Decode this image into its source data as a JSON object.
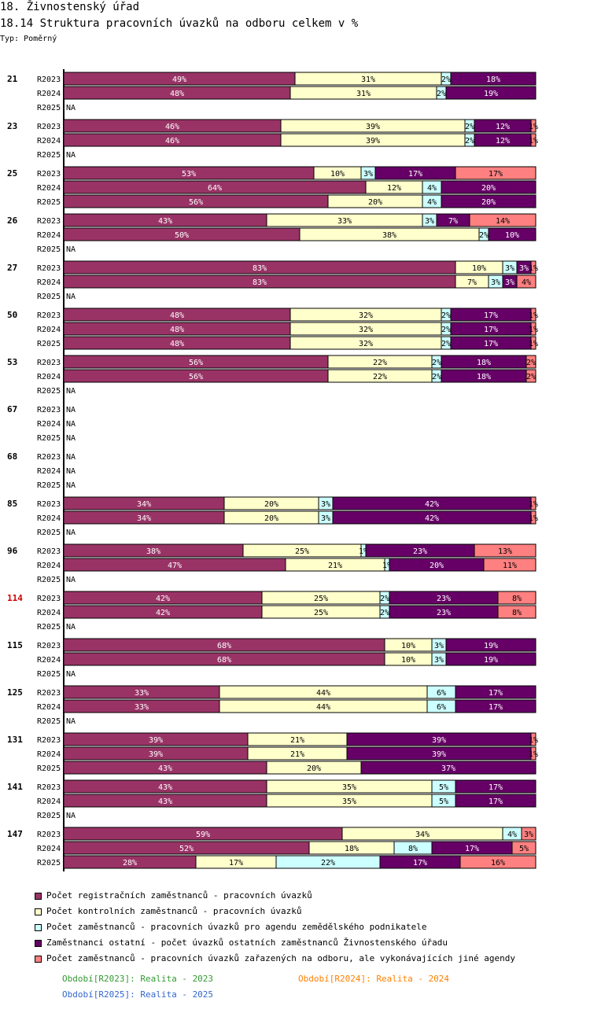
{
  "header": {
    "title": "18. Živnostenský úřad",
    "subtitle": "18.14 Struktura pracovních úvazků na odboru celkem v %",
    "type_label": "Typ: Poměrný"
  },
  "colors": {
    "reg": "#993366",
    "kon": "#ffffcc",
    "zem": "#ccffff",
    "ost": "#660066",
    "jin": "#ff8080",
    "group_highlight": "#cc0000",
    "period_2023": "#339933",
    "period_2024": "#ff8000",
    "period_2025": "#3366cc"
  },
  "legend": [
    {
      "key": "reg",
      "label": "Počet registračních zaměstnanců - pracovních úvazků"
    },
    {
      "key": "kon",
      "label": "Počet kontrolních zaměstnanců - pracovních úvazků"
    },
    {
      "key": "zem",
      "label": "Počet zaměstnanců - pracovních úvazků pro agendu zemědělského podnikatele"
    },
    {
      "key": "ost",
      "label": "Zaměstnanci ostatní - počet úvazků ostatních zaměstnanců Živnostenského úřadu"
    },
    {
      "key": "jin",
      "label": "Počet zaměstnanců - pracovních úvazků zařazených na odboru, ale vykonávajících jiné agendy"
    }
  ],
  "periods": [
    {
      "label": "Období[R2023]: Realita - 2023",
      "color_key": "period_2023"
    },
    {
      "label": "Období[R2024]: Realita - 2024",
      "color_key": "period_2024"
    },
    {
      "label": "Období[R2025]: Realita - 2025",
      "color_key": "period_2025"
    }
  ],
  "chart_data": {
    "type": "bar",
    "orientation": "horizontal",
    "stacked": true,
    "normalized_percent": true,
    "title": "18.14 Struktura pracovních úvazků na odboru celkem v %",
    "series_keys": [
      "reg",
      "kon",
      "zem",
      "ost",
      "jin"
    ],
    "na_label": "NA",
    "groups": [
      {
        "id": "21",
        "highlight": false,
        "rows": [
          {
            "label": "R2023",
            "values": [
              49,
              31,
              2,
              18,
              0
            ]
          },
          {
            "label": "R2024",
            "values": [
              48,
              31,
              2,
              19,
              0
            ]
          },
          {
            "label": "R2025",
            "values": null
          }
        ]
      },
      {
        "id": "23",
        "highlight": false,
        "rows": [
          {
            "label": "R2023",
            "values": [
              46,
              39,
              2,
              12,
              1
            ]
          },
          {
            "label": "R2024",
            "values": [
              46,
              39,
              2,
              12,
              1
            ]
          },
          {
            "label": "R2025",
            "values": null
          }
        ]
      },
      {
        "id": "25",
        "highlight": false,
        "rows": [
          {
            "label": "R2023",
            "values": [
              53,
              10,
              3,
              17,
              17
            ]
          },
          {
            "label": "R2024",
            "values": [
              64,
              12,
              4,
              20,
              0
            ]
          },
          {
            "label": "R2025",
            "values": [
              56,
              20,
              4,
              20,
              0
            ]
          }
        ]
      },
      {
        "id": "26",
        "highlight": false,
        "rows": [
          {
            "label": "R2023",
            "values": [
              43,
              33,
              3,
              7,
              14
            ]
          },
          {
            "label": "R2024",
            "values": [
              50,
              38,
              2,
              10,
              0
            ]
          },
          {
            "label": "R2025",
            "values": null
          }
        ]
      },
      {
        "id": "27",
        "highlight": false,
        "rows": [
          {
            "label": "R2023",
            "values": [
              83,
              10,
              3,
              3,
              1
            ]
          },
          {
            "label": "R2024",
            "values": [
              83,
              7,
              3,
              3,
              4
            ]
          },
          {
            "label": "R2025",
            "values": null
          }
        ]
      },
      {
        "id": "50",
        "highlight": false,
        "rows": [
          {
            "label": "R2023",
            "values": [
              48,
              32,
              2,
              17,
              1
            ]
          },
          {
            "label": "R2024",
            "values": [
              48,
              32,
              2,
              17,
              1
            ]
          },
          {
            "label": "R2025",
            "values": [
              48,
              32,
              2,
              17,
              1
            ]
          }
        ]
      },
      {
        "id": "53",
        "highlight": false,
        "rows": [
          {
            "label": "R2023",
            "values": [
              56,
              22,
              2,
              18,
              2
            ]
          },
          {
            "label": "R2024",
            "values": [
              56,
              22,
              2,
              18,
              2
            ]
          },
          {
            "label": "R2025",
            "values": null
          }
        ]
      },
      {
        "id": "67",
        "highlight": false,
        "rows": [
          {
            "label": "R2023",
            "values": null
          },
          {
            "label": "R2024",
            "values": null
          },
          {
            "label": "R2025",
            "values": null
          }
        ]
      },
      {
        "id": "68",
        "highlight": false,
        "rows": [
          {
            "label": "R2023",
            "values": null
          },
          {
            "label": "R2024",
            "values": null
          },
          {
            "label": "R2025",
            "values": null
          }
        ]
      },
      {
        "id": "85",
        "highlight": false,
        "rows": [
          {
            "label": "R2023",
            "values": [
              34,
              20,
              3,
              42,
              1
            ]
          },
          {
            "label": "R2024",
            "values": [
              34,
              20,
              3,
              42,
              1
            ]
          },
          {
            "label": "R2025",
            "values": null
          }
        ]
      },
      {
        "id": "96",
        "highlight": false,
        "rows": [
          {
            "label": "R2023",
            "values": [
              38,
              25,
              1,
              23,
              13
            ]
          },
          {
            "label": "R2024",
            "values": [
              47,
              21,
              1,
              20,
              11
            ]
          },
          {
            "label": "R2025",
            "values": null
          }
        ]
      },
      {
        "id": "114",
        "highlight": true,
        "rows": [
          {
            "label": "R2023",
            "values": [
              42,
              25,
              2,
              23,
              8
            ]
          },
          {
            "label": "R2024",
            "values": [
              42,
              25,
              2,
              23,
              8
            ]
          },
          {
            "label": "R2025",
            "values": null
          }
        ]
      },
      {
        "id": "115",
        "highlight": false,
        "rows": [
          {
            "label": "R2023",
            "values": [
              68,
              10,
              3,
              19,
              0
            ]
          },
          {
            "label": "R2024",
            "values": [
              68,
              10,
              3,
              19,
              0
            ]
          },
          {
            "label": "R2025",
            "values": null
          }
        ]
      },
      {
        "id": "125",
        "highlight": false,
        "rows": [
          {
            "label": "R2023",
            "values": [
              33,
              44,
              6,
              17,
              0
            ]
          },
          {
            "label": "R2024",
            "values": [
              33,
              44,
              6,
              17,
              0
            ]
          },
          {
            "label": "R2025",
            "values": null
          }
        ]
      },
      {
        "id": "131",
        "highlight": false,
        "rows": [
          {
            "label": "R2023",
            "values": [
              39,
              21,
              0,
              39,
              1
            ]
          },
          {
            "label": "R2024",
            "values": [
              39,
              21,
              0,
              39,
              1
            ]
          },
          {
            "label": "R2025",
            "values": [
              43,
              20,
              0,
              37,
              0
            ]
          }
        ]
      },
      {
        "id": "141",
        "highlight": false,
        "rows": [
          {
            "label": "R2023",
            "values": [
              43,
              35,
              5,
              17,
              0
            ]
          },
          {
            "label": "R2024",
            "values": [
              43,
              35,
              5,
              17,
              0
            ]
          },
          {
            "label": "R2025",
            "values": null
          }
        ]
      },
      {
        "id": "147",
        "highlight": false,
        "rows": [
          {
            "label": "R2023",
            "values": [
              59,
              34,
              4,
              0,
              3
            ]
          },
          {
            "label": "R2024",
            "values": [
              52,
              18,
              8,
              17,
              5
            ]
          },
          {
            "label": "R2025",
            "values": [
              28,
              17,
              22,
              17,
              16
            ]
          }
        ]
      }
    ]
  }
}
